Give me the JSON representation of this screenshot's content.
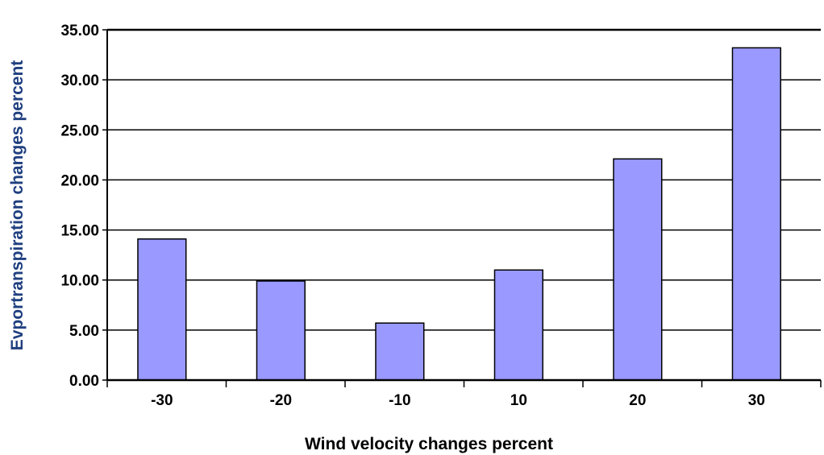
{
  "chart_data": {
    "type": "bar",
    "title": "",
    "xlabel": "Wind velocity changes percent",
    "ylabel": "Evportranspiration changes percent",
    "categories": [
      "-30",
      "-20",
      "-10",
      "10",
      "20",
      "30"
    ],
    "values": [
      14.1,
      9.9,
      5.7,
      11.0,
      22.1,
      33.2
    ],
    "ylim": [
      0,
      35
    ],
    "yticks": [
      "0.00",
      "5.00",
      "10.00",
      "15.00",
      "20.00",
      "25.00",
      "30.00",
      "35.00"
    ],
    "grid": true,
    "legend": "none",
    "colors": {
      "bar_fill": "#9999ff",
      "bar_stroke": "#000000",
      "grid": "#000000",
      "xlabel_color": "#000000",
      "ylabel_color": "#1f3f7f"
    }
  }
}
